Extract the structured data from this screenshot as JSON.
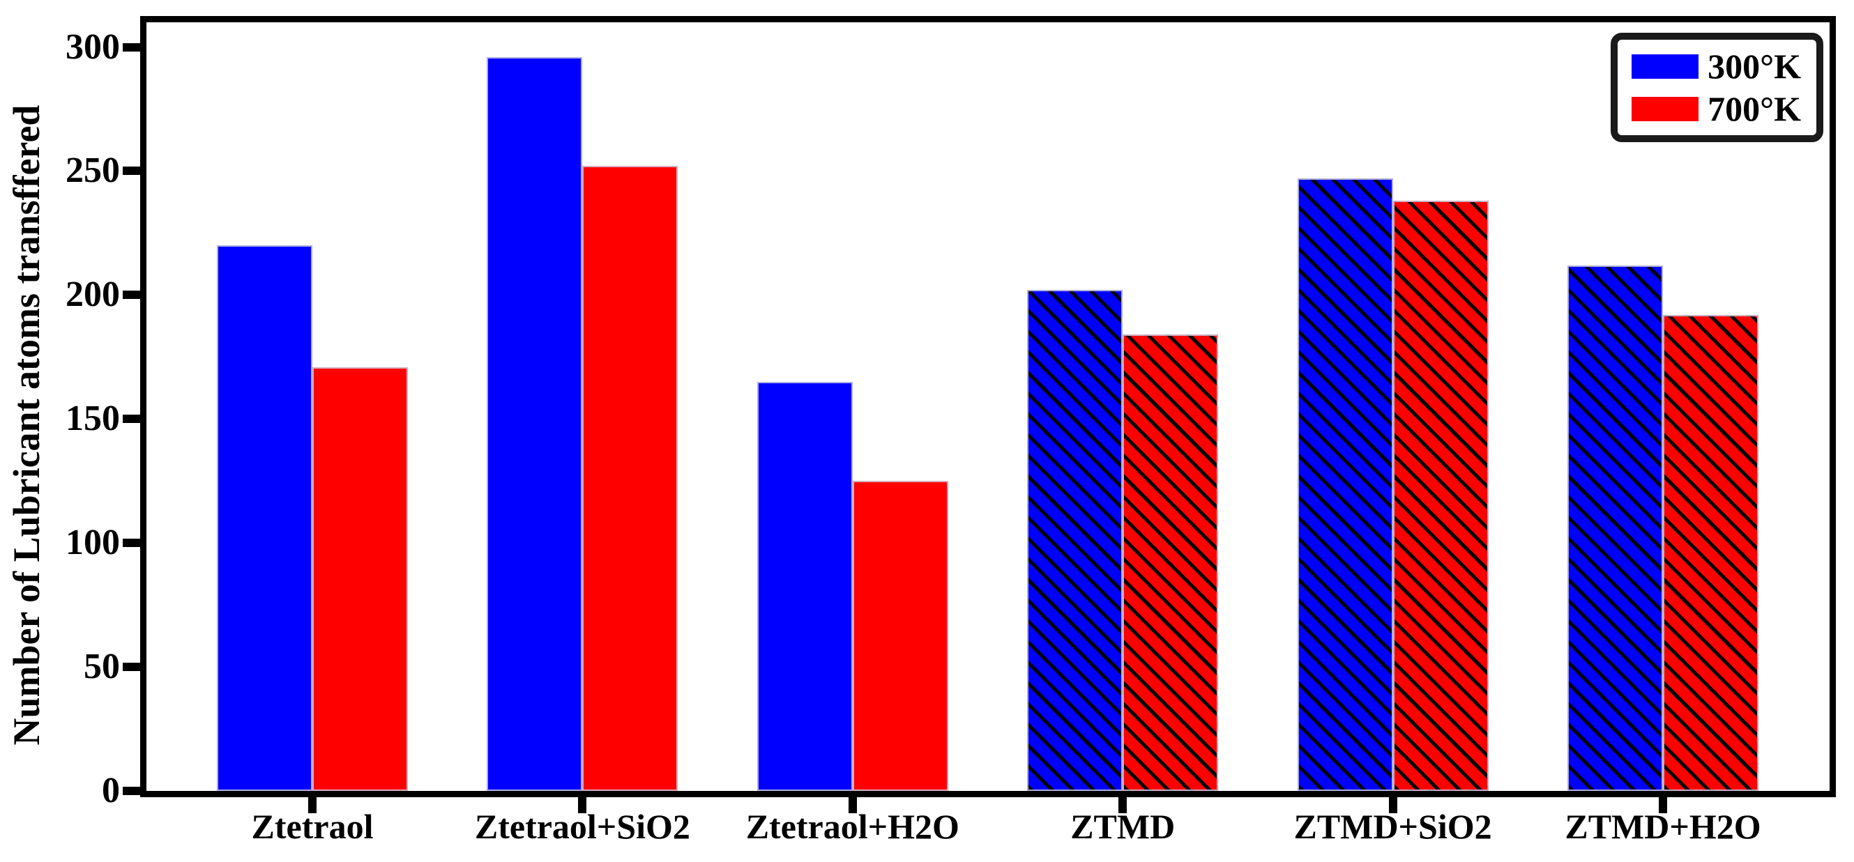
{
  "chart_data": {
    "type": "bar",
    "categories": [
      "Ztetraol",
      "Ztetraol+SiO2",
      "Ztetraol+H2O",
      "ZTMD",
      "ZTMD+SiO2",
      "ZTMD+H2O"
    ],
    "series": [
      {
        "name": "300°K",
        "color": "#0000ff",
        "values": [
          220,
          296,
          165,
          202,
          247,
          212
        ]
      },
      {
        "name": "700°K",
        "color": "#ff0000",
        "values": [
          171,
          252,
          125,
          184,
          238,
          192
        ]
      }
    ],
    "ylabel": "Number of Lubricant atoms transffered",
    "ylim": [
      0,
      310
    ],
    "yticks": [
      0,
      50,
      100,
      150,
      200,
      250,
      300
    ],
    "hatched_categories": [
      "ZTMD",
      "ZTMD+SiO2",
      "ZTMD+H2O"
    ],
    "hatch_style": "\\",
    "legend_position": "upper right",
    "grid": false,
    "axis_color": "#000000",
    "background_color": "#ffffff"
  }
}
